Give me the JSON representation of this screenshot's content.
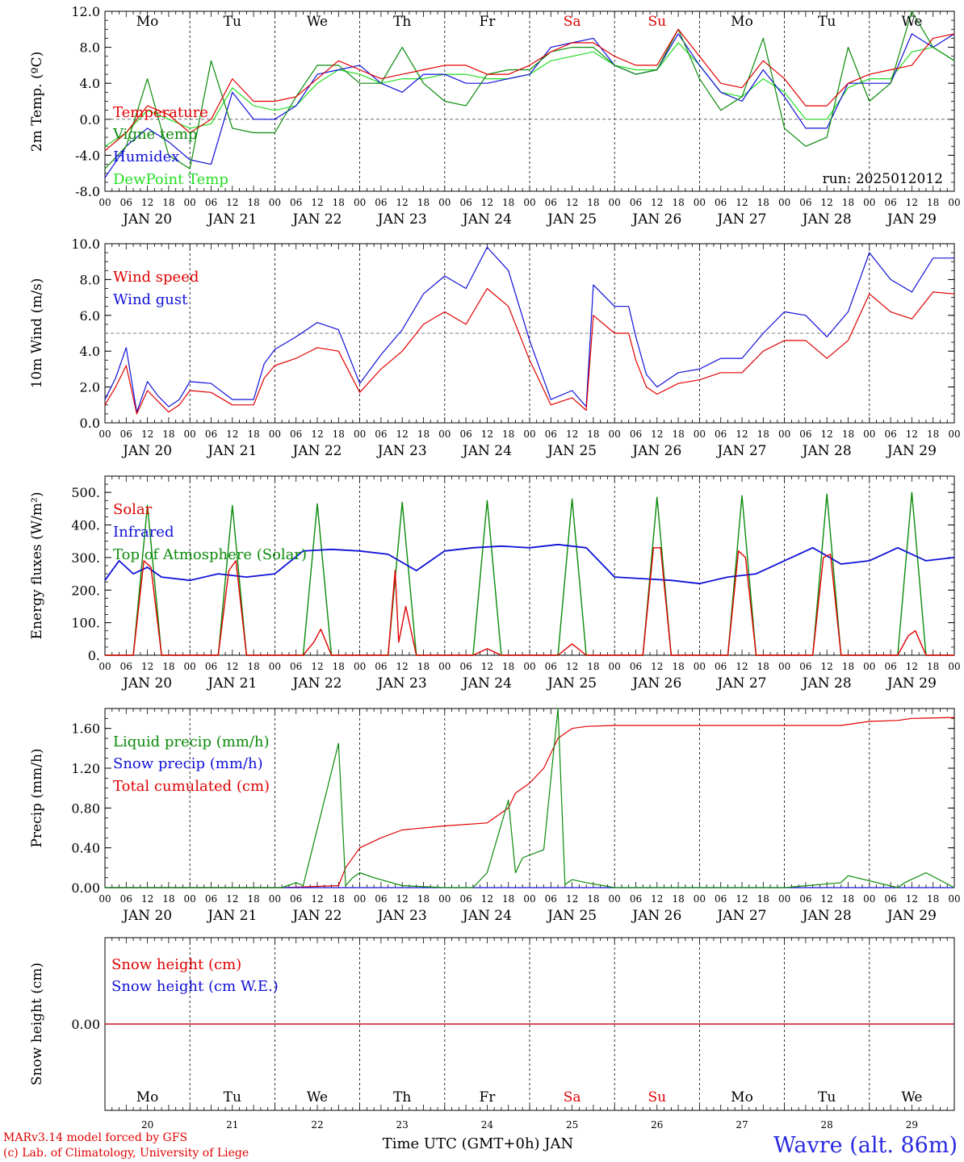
{
  "station": "Wavre (alt. 86m)",
  "footer": {
    "model": "MARv3.14 model forced by GFS",
    "credit": "(c) Lab. of Climatology, University of Liege"
  },
  "run_label": "run: 2025012012",
  "x_title": "Time UTC (GMT+0h) JAN",
  "hour_labels": [
    "00",
    "06",
    "12",
    "18"
  ],
  "end_hour_label": "00",
  "days": [
    {
      "date": "JAN 20",
      "num": "20",
      "weekday": "Mo",
      "weekend": false
    },
    {
      "date": "JAN 21",
      "num": "21",
      "weekday": "Tu",
      "weekend": false
    },
    {
      "date": "JAN 22",
      "num": "22",
      "weekday": "We",
      "weekend": false
    },
    {
      "date": "JAN 23",
      "num": "23",
      "weekday": "Th",
      "weekend": false
    },
    {
      "date": "JAN 24",
      "num": "24",
      "weekday": "Fr",
      "weekend": false
    },
    {
      "date": "JAN 25",
      "num": "25",
      "weekday": "Sa",
      "weekend": true
    },
    {
      "date": "JAN 26",
      "num": "26",
      "weekday": "Su",
      "weekend": true
    },
    {
      "date": "JAN 27",
      "num": "27",
      "weekday": "Mo",
      "weekend": false
    },
    {
      "date": "JAN 28",
      "num": "28",
      "weekday": "Tu",
      "weekend": false
    },
    {
      "date": "JAN 29",
      "num": "29",
      "weekday": "We",
      "weekend": false
    }
  ],
  "colors": {
    "red": "#e00000",
    "green": "#0a8a0a",
    "blue": "#1010d8",
    "light_green": "#22dd22",
    "weekend": "#e00000"
  },
  "chart_data": [
    {
      "type": "line",
      "ylabel": "2m Temp. (ºC)",
      "ylim": [
        -8,
        12
      ],
      "yticks": [
        "12.0",
        "8.0",
        "4.0",
        "0.0",
        "-4.0",
        "-8.0"
      ],
      "ytick_values": [
        12,
        8,
        4,
        0,
        -4,
        -8
      ],
      "ref_line": 0,
      "x_unit": "hours since JAN 20 00 UTC",
      "series": [
        {
          "name": "Temperature",
          "color": "red",
          "x": [
            0,
            6,
            12,
            18,
            24,
            30,
            36,
            42,
            48,
            54,
            60,
            66,
            72,
            78,
            84,
            90,
            96,
            102,
            108,
            114,
            120,
            126,
            132,
            138,
            144,
            150,
            156,
            162,
            168,
            174,
            180,
            186,
            192,
            198,
            204,
            210,
            216,
            222,
            228,
            234,
            240
          ],
          "y": [
            -3.5,
            -1.5,
            1.5,
            0.5,
            -1.5,
            0,
            4.5,
            2,
            2,
            2.5,
            4.5,
            6.5,
            5.5,
            4.5,
            5,
            5.5,
            6,
            6,
            5,
            5,
            6,
            7.5,
            8.5,
            8.5,
            7,
            6,
            6,
            10,
            7,
            4,
            3.5,
            6.5,
            4.5,
            1.5,
            1.5,
            4,
            5,
            5.5,
            6,
            9,
            9.5
          ]
        },
        {
          "name": "Vigne temp",
          "color": "green",
          "x": [
            0,
            6,
            12,
            18,
            24,
            30,
            36,
            42,
            48,
            54,
            60,
            66,
            72,
            78,
            84,
            90,
            96,
            102,
            108,
            114,
            120,
            126,
            132,
            138,
            144,
            150,
            156,
            162,
            168,
            174,
            180,
            186,
            192,
            198,
            204,
            210,
            216,
            222,
            228,
            234,
            240
          ],
          "y": [
            -5.5,
            -3,
            4.5,
            -4,
            -5.5,
            6.5,
            -1,
            -1.5,
            -1.5,
            2.5,
            6,
            6,
            4,
            4,
            8,
            4,
            2,
            1.5,
            5,
            5.5,
            5.5,
            7.5,
            8,
            8,
            6,
            5,
            5.5,
            10,
            4.5,
            1,
            2.5,
            9,
            -1,
            -3,
            -2,
            8,
            2,
            4,
            12,
            8,
            6.5
          ]
        },
        {
          "name": "Humidex",
          "color": "blue",
          "x": [
            0,
            6,
            12,
            18,
            24,
            30,
            36,
            42,
            48,
            54,
            60,
            66,
            72,
            78,
            84,
            90,
            96,
            102,
            108,
            114,
            120,
            126,
            132,
            138,
            144,
            150,
            156,
            162,
            168,
            174,
            180,
            186,
            192,
            198,
            204,
            210,
            216,
            222,
            228,
            234,
            240
          ],
          "y": [
            -6.5,
            -3,
            -1,
            -2.5,
            -4.5,
            -5,
            3,
            0,
            0,
            1.5,
            5,
            5.5,
            6,
            4,
            3,
            5,
            5,
            4,
            4,
            4.5,
            5,
            8,
            8.5,
            9,
            6,
            5,
            5.5,
            9.5,
            6,
            3,
            2,
            5.5,
            2.5,
            -1,
            -1,
            4,
            4,
            4,
            9.5,
            8,
            9.5
          ]
        },
        {
          "name": "DewPoint Temp",
          "color": "light_green",
          "x": [
            0,
            6,
            12,
            18,
            24,
            30,
            36,
            42,
            48,
            54,
            60,
            66,
            72,
            78,
            84,
            90,
            96,
            102,
            108,
            114,
            120,
            126,
            132,
            138,
            144,
            150,
            156,
            162,
            168,
            174,
            180,
            186,
            192,
            198,
            204,
            210,
            216,
            222,
            228,
            234,
            240
          ],
          "y": [
            -3,
            -1.5,
            1,
            0,
            -1,
            -0.5,
            3.5,
            1.5,
            1,
            1.5,
            4,
            5.5,
            5,
            4,
            4.5,
            4.5,
            5,
            5,
            4.5,
            4.5,
            5,
            6.5,
            7,
            7.5,
            6,
            5.5,
            5.5,
            8.5,
            6,
            3,
            2.5,
            4.5,
            3,
            0,
            0,
            3.5,
            4.5,
            4.5,
            7.5,
            8,
            6.5
          ]
        }
      ]
    },
    {
      "type": "line",
      "ylabel": "10m Wind (m/s)",
      "ylim": [
        0,
        10
      ],
      "yticks": [
        "10.0",
        "8.0",
        "6.0",
        "4.0",
        "2.0",
        "0.0"
      ],
      "ytick_values": [
        10,
        8,
        6,
        4,
        2,
        0
      ],
      "ref_line": 5,
      "series": [
        {
          "name": "Wind speed",
          "color": "red",
          "x": [
            0,
            3,
            6,
            9,
            12,
            15,
            18,
            21,
            24,
            30,
            36,
            42,
            45,
            48,
            54,
            60,
            66,
            72,
            78,
            84,
            90,
            96,
            102,
            108,
            114,
            120,
            126,
            132,
            136,
            138,
            144,
            148,
            150,
            153,
            156,
            162,
            168,
            174,
            180,
            186,
            192,
            198,
            204,
            210,
            216,
            222,
            228,
            234,
            240
          ],
          "y": [
            1,
            2,
            3.2,
            0.5,
            1.8,
            1.2,
            0.6,
            1,
            1.8,
            1.7,
            1,
            1,
            2.5,
            3.2,
            3.6,
            4.2,
            4,
            1.7,
            3,
            4,
            5.5,
            6.2,
            5.5,
            7.5,
            6.5,
            3.5,
            1,
            1.4,
            0.7,
            6,
            5,
            5,
            3.5,
            2,
            1.6,
            2.2,
            2.4,
            2.8,
            2.8,
            4,
            4.6,
            4.6,
            3.6,
            4.6,
            7.2,
            6.2,
            5.8,
            7.3,
            7.2
          ]
        },
        {
          "name": "Wind gust",
          "color": "blue",
          "x": [
            0,
            3,
            6,
            9,
            12,
            15,
            18,
            21,
            24,
            30,
            36,
            42,
            45,
            48,
            54,
            60,
            66,
            72,
            78,
            84,
            90,
            96,
            102,
            108,
            114,
            120,
            126,
            132,
            136,
            138,
            144,
            148,
            150,
            153,
            156,
            162,
            168,
            174,
            180,
            186,
            192,
            198,
            204,
            210,
            216,
            222,
            228,
            234,
            240
          ],
          "y": [
            1.3,
            2.5,
            4.2,
            0.6,
            2.3,
            1.5,
            0.9,
            1.3,
            2.3,
            2.2,
            1.3,
            1.3,
            3.3,
            4.1,
            4.8,
            5.6,
            5.2,
            2.2,
            3.8,
            5.2,
            7.2,
            8.2,
            7.5,
            9.8,
            8.5,
            4.6,
            1.3,
            1.8,
            0.9,
            7.7,
            6.5,
            6.5,
            4.8,
            2.7,
            2,
            2.8,
            3,
            3.6,
            3.6,
            5,
            6.2,
            6,
            4.8,
            6.2,
            9.5,
            8,
            7.3,
            9.2,
            9.2
          ]
        }
      ]
    },
    {
      "type": "line",
      "ylabel": "Energy fluxes (W/m²)",
      "ylim": [
        0,
        550
      ],
      "yticks": [
        "500.",
        "400.",
        "300.",
        "200.",
        "100.",
        "0."
      ],
      "ytick_values": [
        500,
        400,
        300,
        200,
        100,
        0
      ],
      "series": [
        {
          "name": "Solar",
          "color": "red",
          "x": [
            0,
            8,
            11,
            13,
            16,
            24,
            32,
            35,
            37,
            40,
            48,
            56,
            59,
            61,
            64,
            72,
            80,
            82,
            83,
            85,
            88,
            96,
            104,
            108,
            112,
            120,
            128,
            132,
            136,
            144,
            152,
            155,
            157,
            160,
            168,
            176,
            179,
            181,
            184,
            192,
            200,
            203,
            205,
            208,
            216,
            224,
            227,
            229,
            232,
            240
          ],
          "y": [
            0,
            0,
            290,
            270,
            0,
            0,
            0,
            260,
            290,
            0,
            0,
            0,
            40,
            80,
            0,
            0,
            0,
            260,
            40,
            150,
            0,
            0,
            0,
            20,
            0,
            0,
            0,
            35,
            0,
            0,
            0,
            330,
            330,
            0,
            0,
            0,
            320,
            300,
            0,
            0,
            0,
            300,
            310,
            0,
            0,
            0,
            60,
            75,
            0,
            0
          ]
        },
        {
          "name": "Infrared",
          "color": "blue",
          "x": [
            0,
            4,
            8,
            12,
            16,
            24,
            32,
            40,
            48,
            56,
            64,
            72,
            80,
            88,
            96,
            104,
            112,
            120,
            128,
            136,
            144,
            152,
            160,
            168,
            176,
            184,
            192,
            200,
            208,
            216,
            224,
            232,
            240
          ],
          "y": [
            230,
            290,
            250,
            270,
            240,
            230,
            250,
            240,
            250,
            320,
            325,
            320,
            310,
            260,
            320,
            330,
            335,
            330,
            340,
            330,
            240,
            235,
            230,
            220,
            240,
            250,
            290,
            330,
            280,
            290,
            330,
            290,
            300
          ]
        },
        {
          "name": "Top of Atmosphere (Solar)",
          "color": "green",
          "x": [
            0,
            8,
            12,
            16,
            24,
            32,
            36,
            40,
            48,
            56,
            60,
            64,
            72,
            80,
            84,
            88,
            96,
            104,
            108,
            112,
            120,
            128,
            132,
            136,
            144,
            152,
            156,
            160,
            168,
            176,
            180,
            184,
            192,
            200,
            204,
            208,
            216,
            224,
            228,
            232,
            240
          ],
          "y": [
            0,
            0,
            460,
            0,
            0,
            0,
            460,
            0,
            0,
            0,
            465,
            0,
            0,
            0,
            470,
            0,
            0,
            0,
            475,
            0,
            0,
            0,
            480,
            0,
            0,
            0,
            485,
            0,
            0,
            0,
            490,
            0,
            0,
            0,
            495,
            0,
            0,
            0,
            500,
            0,
            0
          ]
        }
      ]
    },
    {
      "type": "line",
      "ylabel": "Precip (mm/h)",
      "ylim": [
        0,
        1.8
      ],
      "yticks": [
        "1.60",
        "1.20",
        "0.80",
        "0.40",
        "0.00"
      ],
      "ytick_values": [
        1.6,
        1.2,
        0.8,
        0.4,
        0
      ],
      "series": [
        {
          "name": "Liquid precip (mm/h)",
          "color": "green",
          "x": [
            0,
            50,
            54,
            56,
            66,
            68,
            70,
            72,
            76,
            84,
            96,
            104,
            108,
            114,
            116,
            118,
            124,
            128,
            130,
            132,
            136,
            144,
            150,
            168,
            192,
            208,
            210,
            224,
            226,
            232,
            240
          ],
          "y": [
            0,
            0,
            0.05,
            0.02,
            1.45,
            0.02,
            0.1,
            0.15,
            0.1,
            0.02,
            0,
            0,
            0.15,
            0.88,
            0.15,
            0.3,
            0.38,
            1.8,
            0.03,
            0.08,
            0.05,
            0,
            0,
            0,
            0,
            0.05,
            0.12,
            0,
            0.05,
            0.15,
            0
          ]
        },
        {
          "name": "Snow precip (mm/h)",
          "color": "blue",
          "x": [
            0,
            240
          ],
          "y": [
            0,
            0
          ]
        },
        {
          "name": "Total cumulated (cm)",
          "color": "red",
          "x": [
            0,
            50,
            66,
            68,
            72,
            78,
            84,
            96,
            108,
            114,
            116,
            120,
            124,
            128,
            130,
            132,
            136,
            144,
            150,
            168,
            192,
            208,
            216,
            224,
            228,
            240
          ],
          "y": [
            0,
            0,
            0.02,
            0.2,
            0.4,
            0.5,
            0.58,
            0.62,
            0.65,
            0.8,
            0.95,
            1.05,
            1.2,
            1.5,
            1.55,
            1.6,
            1.62,
            1.63,
            1.63,
            1.63,
            1.63,
            1.63,
            1.67,
            1.68,
            1.7,
            1.71
          ]
        }
      ]
    },
    {
      "type": "line",
      "ylabel": "Snow height (cm)",
      "ylim": [
        -1,
        1
      ],
      "yticks": [
        "0.00"
      ],
      "ytick_values": [
        0
      ],
      "series": [
        {
          "name": "Snow height (cm)",
          "color": "red",
          "x": [
            0,
            240
          ],
          "y": [
            0,
            0
          ]
        },
        {
          "name": "Snow height (cm W.E.)",
          "color": "blue",
          "x": [
            0,
            240
          ],
          "y": [
            0,
            0
          ]
        }
      ]
    }
  ]
}
